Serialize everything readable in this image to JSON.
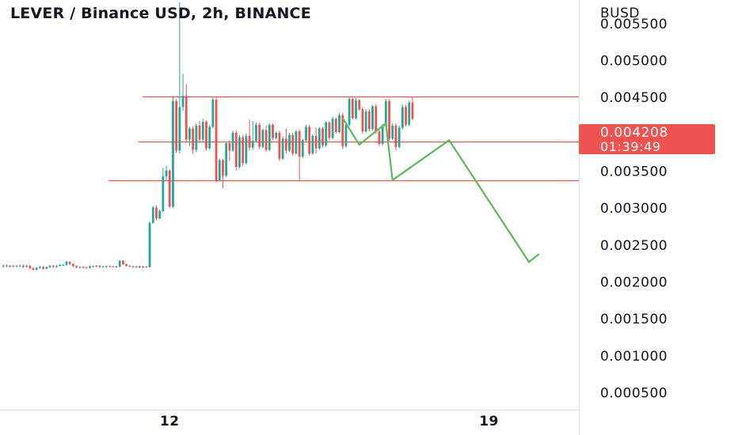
{
  "header": {
    "title": "LEVER / Binance USD, 2h, BINANCE"
  },
  "price_axis": {
    "currency": "BUSD",
    "labels": [
      "0.005500",
      "0.005000",
      "0.004500",
      "0.003500",
      "0.003000",
      "0.002500",
      "0.002000",
      "0.001500",
      "0.001000",
      "0.000500"
    ]
  },
  "time_axis": {
    "labels": [
      "12",
      "19"
    ]
  },
  "last_price": {
    "value": "0.004208",
    "countdown": "01:39:49",
    "color": "#f0534f"
  },
  "colors": {
    "up": "#26a69a",
    "down": "#ef5350",
    "level": "#f0534f",
    "projection": "#5cb85c",
    "axis_text": "#131722"
  },
  "chart_data": {
    "type": "candlestick",
    "title": "LEVER / Binance USD, 2h, BINANCE",
    "ylabel": "BUSD",
    "ylim": [
      0.00027,
      0.00582
    ],
    "y_ticks": [
      0.0055,
      0.005,
      0.0045,
      0.0035,
      0.003,
      0.0025,
      0.002,
      0.0015,
      0.001,
      0.0005
    ],
    "x_ticks": [
      {
        "label": "12",
        "index": 50
      },
      {
        "label": "19",
        "index": 146
      }
    ],
    "x_index_range": [
      -1,
      173
    ],
    "last_price": 0.004208,
    "horizontal_levels": [
      0.00451,
      0.0039,
      0.00338
    ],
    "projection_path": [
      {
        "i": 102,
        "price": 0.00422
      },
      {
        "i": 107,
        "price": 0.00386
      },
      {
        "i": 115,
        "price": 0.00415
      },
      {
        "i": 117,
        "price": 0.00338
      },
      {
        "i": 134,
        "price": 0.00392
      },
      {
        "i": 158,
        "price": 0.00227
      },
      {
        "i": 161,
        "price": 0.00238
      }
    ],
    "candles": [
      [
        0.002213,
        0.002225,
        0.00219,
        0.002236
      ],
      [
        0.002225,
        0.002213,
        0.002196,
        0.00224
      ],
      [
        0.002213,
        0.002218,
        0.002199,
        0.002231
      ],
      [
        0.002218,
        0.002214,
        0.002201,
        0.002229
      ],
      [
        0.002214,
        0.002218,
        0.002202,
        0.002233
      ],
      [
        0.002218,
        0.002222,
        0.002207,
        0.002238
      ],
      [
        0.002222,
        0.002203,
        0.002191,
        0.002235
      ],
      [
        0.002203,
        0.002218,
        0.002196,
        0.002233
      ],
      [
        0.002218,
        0.002185,
        0.002171,
        0.002232
      ],
      [
        0.002185,
        0.002166,
        0.002158,
        0.0022
      ],
      [
        0.002166,
        0.002191,
        0.002157,
        0.002204
      ],
      [
        0.002191,
        0.002204,
        0.002178,
        0.002221
      ],
      [
        0.002204,
        0.00218,
        0.002165,
        0.002216
      ],
      [
        0.00218,
        0.002202,
        0.002173,
        0.002212
      ],
      [
        0.002202,
        0.002218,
        0.002188,
        0.002232
      ],
      [
        0.002218,
        0.002204,
        0.002193,
        0.002231
      ],
      [
        0.002204,
        0.002219,
        0.002192,
        0.002229
      ],
      [
        0.002219,
        0.002231,
        0.002211,
        0.002243
      ],
      [
        0.002231,
        0.002233,
        0.002215,
        0.002245
      ],
      [
        0.002233,
        0.002273,
        0.002222,
        0.002286
      ],
      [
        0.002273,
        0.002243,
        0.00223,
        0.002282
      ],
      [
        0.002243,
        0.002216,
        0.002203,
        0.002253
      ],
      [
        0.002216,
        0.002198,
        0.002185,
        0.002225
      ],
      [
        0.002198,
        0.002203,
        0.00219,
        0.002214
      ],
      [
        0.002203,
        0.002198,
        0.002186,
        0.002216
      ],
      [
        0.002198,
        0.002193,
        0.002184,
        0.002208
      ],
      [
        0.002193,
        0.002213,
        0.002182,
        0.002227
      ],
      [
        0.002213,
        0.002211,
        0.002199,
        0.002222
      ],
      [
        0.002211,
        0.002217,
        0.0022,
        0.00223
      ],
      [
        0.002217,
        0.002204,
        0.002191,
        0.002229
      ],
      [
        0.002204,
        0.002207,
        0.002196,
        0.002221
      ],
      [
        0.002207,
        0.002216,
        0.002195,
        0.002225
      ],
      [
        0.002216,
        0.002212,
        0.002198,
        0.002225
      ],
      [
        0.002212,
        0.002209,
        0.002198,
        0.002222
      ],
      [
        0.002209,
        0.002208,
        0.002193,
        0.00222
      ],
      [
        0.002208,
        0.002289,
        0.002201,
        0.002298
      ],
      [
        0.002289,
        0.002241,
        0.002229,
        0.002296
      ],
      [
        0.002241,
        0.00222,
        0.002206,
        0.002248
      ],
      [
        0.00222,
        0.002213,
        0.002203,
        0.002228
      ],
      [
        0.002213,
        0.002203,
        0.002189,
        0.002221
      ],
      [
        0.002203,
        0.002209,
        0.002196,
        0.002218
      ],
      [
        0.002209,
        0.002196,
        0.002189,
        0.002223
      ],
      [
        0.002196,
        0.002208,
        0.002185,
        0.002219
      ],
      [
        0.002208,
        0.002203,
        0.002192,
        0.002214
      ],
      [
        0.0022,
        0.0028,
        0.0022,
        0.00282
      ],
      [
        0.0028,
        0.00301,
        0.00279,
        0.00303
      ],
      [
        0.00301,
        0.00286,
        0.00284,
        0.00304
      ],
      [
        0.00286,
        0.00296,
        0.00285,
        0.00298
      ],
      [
        0.00296,
        0.00343,
        0.00295,
        0.00355
      ],
      [
        0.00343,
        0.00351,
        0.00338,
        0.00357
      ],
      [
        0.00351,
        0.00302,
        0.003,
        0.00353
      ],
      [
        0.00302,
        0.00445,
        0.003,
        0.00452
      ],
      [
        0.00445,
        0.00378,
        0.00375,
        0.00448
      ],
      [
        0.00378,
        0.00437,
        0.00374,
        0.00579
      ],
      [
        0.00437,
        0.00452,
        0.00432,
        0.00482
      ],
      [
        0.00452,
        0.00393,
        0.0039,
        0.00468
      ],
      [
        0.00393,
        0.00408,
        0.00384,
        0.0041
      ],
      [
        0.00408,
        0.00379,
        0.00373,
        0.00411
      ],
      [
        0.00379,
        0.00412,
        0.00376,
        0.00415
      ],
      [
        0.00412,
        0.00393,
        0.00388,
        0.00418
      ],
      [
        0.00393,
        0.00417,
        0.00389,
        0.00421
      ],
      [
        0.00417,
        0.00381,
        0.00378,
        0.00419
      ],
      [
        0.00381,
        0.0041,
        0.00379,
        0.00413
      ],
      [
        0.0041,
        0.00447,
        0.00408,
        0.00451
      ],
      [
        0.00447,
        0.00338,
        0.00335,
        0.0045
      ],
      [
        0.00338,
        0.00365,
        0.00336,
        0.00367
      ],
      [
        0.00365,
        0.00344,
        0.00327,
        0.00367
      ],
      [
        0.00344,
        0.00388,
        0.00342,
        0.0039
      ],
      [
        0.00388,
        0.00378,
        0.00364,
        0.00392
      ],
      [
        0.00378,
        0.00402,
        0.00376,
        0.00405
      ],
      [
        0.00402,
        0.00356,
        0.00352,
        0.00405
      ],
      [
        0.00356,
        0.00396,
        0.00354,
        0.00399
      ],
      [
        0.00396,
        0.00361,
        0.00357,
        0.00399
      ],
      [
        0.00361,
        0.00398,
        0.00359,
        0.00401
      ],
      [
        0.00398,
        0.00382,
        0.00378,
        0.0042
      ],
      [
        0.00382,
        0.00391,
        0.00379,
        0.00418
      ],
      [
        0.00391,
        0.00413,
        0.00389,
        0.00416
      ],
      [
        0.00413,
        0.00383,
        0.0038,
        0.00416
      ],
      [
        0.00383,
        0.00406,
        0.00381,
        0.00408
      ],
      [
        0.00406,
        0.00379,
        0.00376,
        0.00412
      ],
      [
        0.00379,
        0.00413,
        0.00377,
        0.00415
      ],
      [
        0.00413,
        0.00395,
        0.00392,
        0.00415
      ],
      [
        0.00395,
        0.00402,
        0.00393,
        0.00404
      ],
      [
        0.00402,
        0.00367,
        0.00364,
        0.00405
      ],
      [
        0.00367,
        0.00394,
        0.00365,
        0.00397
      ],
      [
        0.00394,
        0.00378,
        0.00374,
        0.00408
      ],
      [
        0.00378,
        0.00399,
        0.00376,
        0.00402
      ],
      [
        0.00399,
        0.00374,
        0.00371,
        0.00402
      ],
      [
        0.00374,
        0.00404,
        0.00372,
        0.00406
      ],
      [
        0.00404,
        0.0037,
        0.00336,
        0.00407
      ],
      [
        0.0037,
        0.00392,
        0.00368,
        0.00394
      ],
      [
        0.00392,
        0.0041,
        0.0039,
        0.00413
      ],
      [
        0.0041,
        0.00374,
        0.00371,
        0.00413
      ],
      [
        0.00374,
        0.00398,
        0.00372,
        0.004
      ],
      [
        0.00398,
        0.00381,
        0.00374,
        0.00409
      ],
      [
        0.00381,
        0.00408,
        0.00379,
        0.0041
      ],
      [
        0.00408,
        0.00385,
        0.00382,
        0.0041
      ],
      [
        0.00385,
        0.00416,
        0.00383,
        0.00418
      ],
      [
        0.00416,
        0.00395,
        0.00392,
        0.00418
      ],
      [
        0.00395,
        0.00421,
        0.00393,
        0.00424
      ],
      [
        0.00421,
        0.00403,
        0.00401,
        0.00423
      ],
      [
        0.00403,
        0.00426,
        0.00401,
        0.00429
      ],
      [
        0.00426,
        0.00384,
        0.0038,
        0.00429
      ],
      [
        0.00384,
        0.00413,
        0.00382,
        0.00416
      ],
      [
        0.00413,
        0.00448,
        0.00411,
        0.00451
      ],
      [
        0.00448,
        0.00422,
        0.0042,
        0.0045
      ],
      [
        0.00422,
        0.00446,
        0.0042,
        0.00449
      ],
      [
        0.00446,
        0.00434,
        0.00432,
        0.00448
      ],
      [
        0.00434,
        0.00404,
        0.00401,
        0.00437
      ],
      [
        0.00404,
        0.00431,
        0.00402,
        0.00434
      ],
      [
        0.00431,
        0.00407,
        0.00404,
        0.00434
      ],
      [
        0.00407,
        0.00438,
        0.00405,
        0.0044
      ],
      [
        0.00438,
        0.00404,
        0.00401,
        0.00441
      ],
      [
        0.00404,
        0.00387,
        0.00384,
        0.00407
      ],
      [
        0.00387,
        0.00411,
        0.00385,
        0.00414
      ],
      [
        0.00411,
        0.00445,
        0.00409,
        0.00448
      ],
      [
        0.00445,
        0.00394,
        0.00391,
        0.00448
      ],
      [
        0.00394,
        0.00412,
        0.00392,
        0.00415
      ],
      [
        0.00412,
        0.00383,
        0.00379,
        0.00415
      ],
      [
        0.00383,
        0.00409,
        0.00381,
        0.00412
      ],
      [
        0.00409,
        0.00437,
        0.00407,
        0.0044
      ],
      [
        0.00437,
        0.00413,
        0.00411,
        0.0044
      ],
      [
        0.00413,
        0.00443,
        0.00411,
        0.00446
      ],
      [
        0.00443,
        0.00421,
        0.00419,
        0.00451
      ]
    ]
  }
}
